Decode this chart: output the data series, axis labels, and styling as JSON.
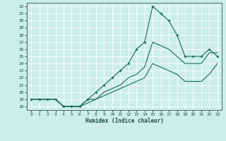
{
  "xlabel": "Humidex (Indice chaleur)",
  "bg_color": "#cceee8",
  "grid_color": "#aaddcc",
  "line_color": "#1a6b5a",
  "xlim": [
    -0.5,
    23.5
  ],
  "ylim": [
    17.5,
    32.5
  ],
  "xticks": [
    0,
    1,
    2,
    3,
    4,
    5,
    6,
    7,
    8,
    9,
    10,
    11,
    12,
    13,
    14,
    15,
    16,
    17,
    18,
    19,
    20,
    21,
    22,
    23
  ],
  "yticks": [
    18,
    19,
    20,
    21,
    22,
    23,
    24,
    25,
    26,
    27,
    28,
    29,
    30,
    31,
    32
  ],
  "series": [
    {
      "x": [
        0,
        1,
        2,
        3,
        4,
        5,
        6,
        7,
        8,
        9,
        10,
        11,
        12,
        13,
        14,
        15,
        16,
        17,
        18,
        19,
        20,
        21,
        22,
        23
      ],
      "y": [
        19,
        19,
        19,
        19,
        18,
        18,
        18,
        19,
        20,
        21,
        22,
        23,
        24,
        26,
        27,
        32,
        31,
        30,
        28,
        25,
        25,
        25,
        26,
        25
      ],
      "marker": true
    },
    {
      "x": [
        0,
        1,
        2,
        3,
        4,
        5,
        6,
        7,
        8,
        9,
        10,
        11,
        12,
        13,
        14,
        15,
        16,
        17,
        18,
        19,
        20,
        21,
        22,
        23
      ],
      "y": [
        19,
        19,
        19,
        19,
        18,
        18,
        18,
        19,
        19,
        20,
        20.5,
        21,
        22,
        22.5,
        23.5,
        27,
        26.5,
        26,
        25,
        24,
        24,
        24,
        25.5,
        25.5
      ],
      "marker": false
    },
    {
      "x": [
        0,
        1,
        2,
        3,
        4,
        5,
        6,
        7,
        8,
        9,
        10,
        11,
        12,
        13,
        14,
        15,
        16,
        17,
        18,
        19,
        20,
        21,
        22,
        23
      ],
      "y": [
        19,
        19,
        19,
        19,
        18,
        18,
        18,
        18.5,
        19,
        19.5,
        20,
        20.5,
        21,
        21.5,
        22,
        24,
        23.5,
        23,
        22.5,
        21.5,
        21.5,
        21.5,
        22.5,
        24
      ],
      "marker": false
    }
  ]
}
